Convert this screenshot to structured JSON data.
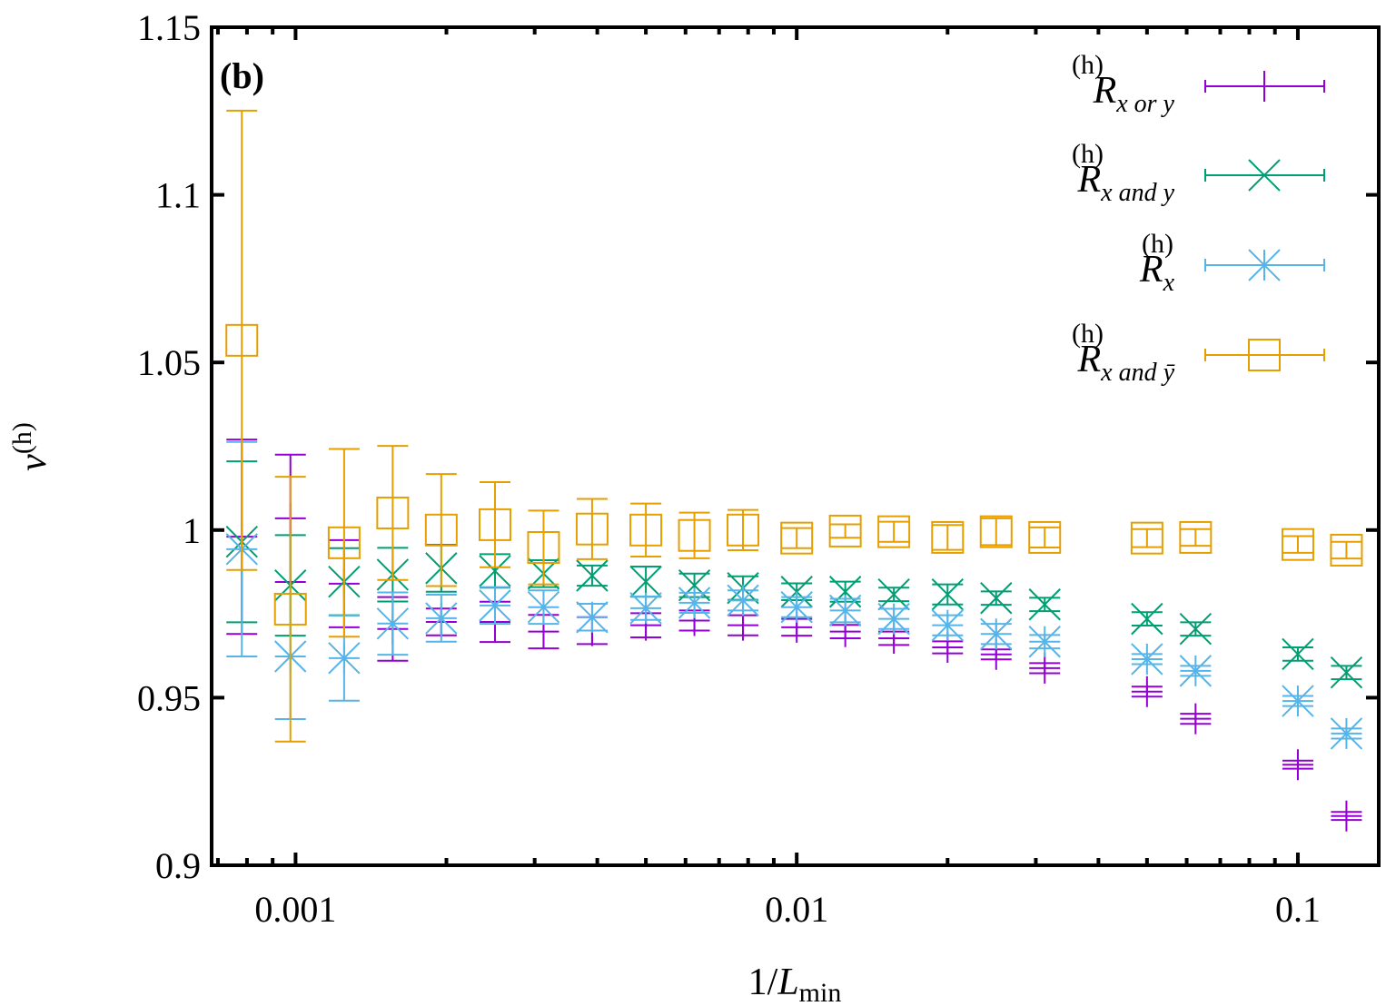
{
  "chart_data": {
    "type": "scatter",
    "panel_label": "(b)",
    "xlabel": {
      "main": "1/",
      "italic": "L",
      "sub": "min"
    },
    "ylabel": {
      "main": "ν",
      "sup": "(h)"
    },
    "xscale": "log",
    "xlim": [
      0.00068,
      0.145
    ],
    "ylim": [
      0.9,
      1.15
    ],
    "xticks": [
      0.001,
      0.01,
      0.1
    ],
    "xtick_labels": [
      "0.001",
      "0.01",
      "0.1"
    ],
    "yticks": [
      0.9,
      0.95,
      1.0,
      1.05,
      1.1,
      1.15
    ],
    "ytick_labels": [
      "0.9",
      "0.95",
      "1",
      "1.05",
      "1.1",
      "1.15"
    ],
    "grid": false,
    "legend_position": "top-right",
    "x": [
      0.00078125,
      0.0009765625,
      0.00125,
      0.0015625,
      0.001953125,
      0.0025,
      0.003125,
      0.00390625,
      0.005,
      0.00625,
      0.0078125,
      0.01,
      0.0125,
      0.015625,
      0.02,
      0.025,
      0.03125,
      0.05,
      0.0625,
      0.1,
      0.125
    ],
    "series": [
      {
        "name": {
          "main": "R",
          "sup": "(h)",
          "sub": "x or y"
        },
        "marker": "plus",
        "color": "#9400d3",
        "values": [
          0.998,
          1.0035,
          0.984,
          0.9705,
          0.9726,
          0.9726,
          0.9697,
          0.97,
          0.9716,
          0.973,
          0.9716,
          0.971,
          0.9697,
          0.9677,
          0.965,
          0.9629,
          0.9588,
          0.9518,
          0.9437,
          0.93,
          0.9147
        ],
        "errors": [
          0.029,
          0.019,
          0.013,
          0.0095,
          0.004,
          0.006,
          0.005,
          0.004,
          0.0036,
          0.003,
          0.003,
          0.0025,
          0.002,
          0.002,
          0.0018,
          0.0015,
          0.0015,
          0.0015,
          0.0015,
          0.0012,
          0.0012
        ]
      },
      {
        "name": {
          "main": "R",
          "sup": "(h)",
          "sub": "x and y"
        },
        "marker": "cross",
        "color": "#009e73",
        "values": [
          0.9965,
          0.9835,
          0.9846,
          0.9867,
          0.9886,
          0.9878,
          0.987,
          0.9864,
          0.9846,
          0.9835,
          0.9827,
          0.9816,
          0.9816,
          0.9808,
          0.9808,
          0.9797,
          0.9778,
          0.9735,
          0.9705,
          0.963,
          0.9575
        ],
        "errors": [
          0.024,
          0.015,
          0.01,
          0.008,
          0.007,
          0.005,
          0.004,
          0.003,
          0.0045,
          0.0035,
          0.0035,
          0.0025,
          0.003,
          0.002,
          0.003,
          0.002,
          0.002,
          0.002,
          0.002,
          0.002,
          0.002
        ]
      },
      {
        "name": {
          "main": "R",
          "sup": "(h)",
          "sub": "x"
        },
        "marker": "star",
        "color": "#56b4e9",
        "values": [
          0.9943,
          0.9623,
          0.9618,
          0.9721,
          0.9737,
          0.9775,
          0.977,
          0.974,
          0.9767,
          0.9783,
          0.979,
          0.977,
          0.976,
          0.9735,
          0.9716,
          0.969,
          0.9667,
          0.9615,
          0.958,
          0.949,
          0.9393
        ],
        "errors": [
          0.032,
          0.0187,
          0.0127,
          0.0093,
          0.007,
          0.0055,
          0.005,
          0.004,
          0.0035,
          0.003,
          0.003,
          0.003,
          0.0035,
          0.003,
          0.003,
          0.003,
          0.002,
          0.0015,
          0.0015,
          0.0015,
          0.0015
        ]
      },
      {
        "name": {
          "main": "R",
          "sup": "(h)",
          "sub": "x and ȳ"
        },
        "marker": "square",
        "color": "#e69f00",
        "values": [
          1.0566,
          0.9764,
          0.9962,
          1.0051,
          1.0,
          1.0016,
          0.9948,
          1.0003,
          1.0,
          0.9984,
          1.0,
          0.9976,
          0.9997,
          0.9995,
          0.9978,
          0.9995,
          0.9978,
          0.9976,
          0.9978,
          0.9957,
          0.994
        ],
        "errors": [
          0.0685,
          0.0395,
          0.028,
          0.02,
          0.0167,
          0.0127,
          0.011,
          0.009,
          0.0079,
          0.0068,
          0.006,
          0.003,
          0.002,
          0.003,
          0.0037,
          0.004,
          0.003,
          0.0027,
          0.0025,
          0.0025,
          0.0025
        ]
      }
    ]
  }
}
